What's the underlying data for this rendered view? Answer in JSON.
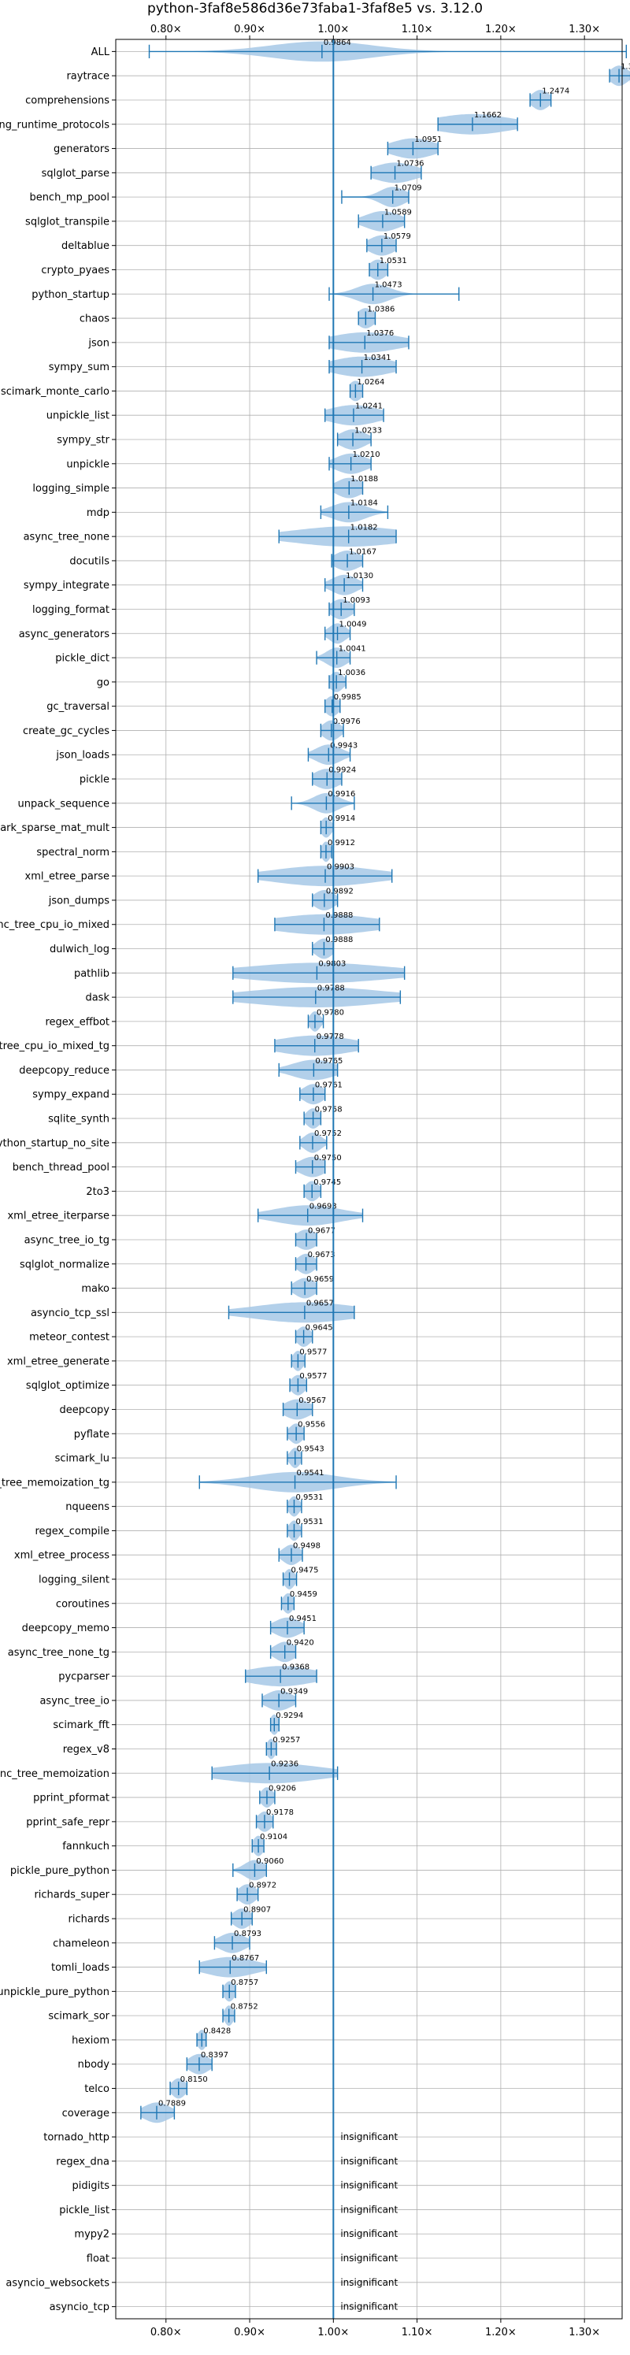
{
  "chart_data": {
    "type": "violin",
    "title": "python-3faf8e586d36e73faba1-3faf8e5 vs. 3.12.0",
    "x_ticks": [
      {
        "value": 0.8,
        "label": "0.80×"
      },
      {
        "value": 0.9,
        "label": "0.90×"
      },
      {
        "value": 1.0,
        "label": "1.00×"
      },
      {
        "value": 1.1,
        "label": "1.10×"
      },
      {
        "value": 1.2,
        "label": "1.20×"
      },
      {
        "value": 1.3,
        "label": "1.30×"
      }
    ],
    "xlim": [
      0.74,
      1.345
    ],
    "reference_line": 1.0,
    "grid": true,
    "colors": {
      "accent": "#1f77b4",
      "violin": "#a6c8e6",
      "grid": "#b0b0b0"
    },
    "insignificant_text": "insignificant",
    "benchmarks": [
      {
        "name": "ALL",
        "median": 0.9864,
        "min": 0.78,
        "max": 1.35,
        "spread": 0.06,
        "label": "0.9864"
      },
      {
        "name": "raytrace",
        "median": 1.3413,
        "min": 1.33,
        "max": 1.355,
        "spread": 0.01,
        "label": "1.3413"
      },
      {
        "name": "comprehensions",
        "median": 1.2474,
        "min": 1.235,
        "max": 1.26,
        "spread": 0.01,
        "label": "1.2474"
      },
      {
        "name": "typing_runtime_protocols",
        "median": 1.1662,
        "min": 1.125,
        "max": 1.22,
        "spread": 0.045,
        "label": "1.1662"
      },
      {
        "name": "generators",
        "median": 1.0951,
        "min": 1.065,
        "max": 1.125,
        "spread": 0.025,
        "label": "1.0951"
      },
      {
        "name": "sqlglot_parse",
        "median": 1.0736,
        "min": 1.045,
        "max": 1.105,
        "spread": 0.025,
        "label": "1.0736"
      },
      {
        "name": "bench_mp_pool",
        "median": 1.0709,
        "min": 1.01,
        "max": 1.09,
        "spread": 0.015,
        "label": "1.0709"
      },
      {
        "name": "sqlglot_transpile",
        "median": 1.0589,
        "min": 1.03,
        "max": 1.085,
        "spread": 0.02,
        "label": "1.0589"
      },
      {
        "name": "deltablue",
        "median": 1.0579,
        "min": 1.04,
        "max": 1.075,
        "spread": 0.015,
        "label": "1.0579"
      },
      {
        "name": "crypto_pyaes",
        "median": 1.0531,
        "min": 1.043,
        "max": 1.065,
        "spread": 0.01,
        "label": "1.0531"
      },
      {
        "name": "python_startup",
        "median": 1.0473,
        "min": 0.995,
        "max": 1.15,
        "spread": 0.02,
        "label": "1.0473"
      },
      {
        "name": "chaos",
        "median": 1.0386,
        "min": 1.03,
        "max": 1.05,
        "spread": 0.01,
        "label": "1.0386"
      },
      {
        "name": "json",
        "median": 1.0376,
        "min": 0.995,
        "max": 1.09,
        "spread": 0.04,
        "label": "1.0376"
      },
      {
        "name": "sympy_sum",
        "median": 1.0341,
        "min": 0.995,
        "max": 1.075,
        "spread": 0.035,
        "label": "1.0341"
      },
      {
        "name": "scimark_monte_carlo",
        "median": 1.0264,
        "min": 1.02,
        "max": 1.035,
        "spread": 0.008,
        "label": "1.0264"
      },
      {
        "name": "unpickle_list",
        "median": 1.0241,
        "min": 0.99,
        "max": 1.06,
        "spread": 0.03,
        "label": "1.0241"
      },
      {
        "name": "sympy_str",
        "median": 1.0233,
        "min": 1.005,
        "max": 1.045,
        "spread": 0.015,
        "label": "1.0233"
      },
      {
        "name": "unpickle",
        "median": 1.021,
        "min": 0.995,
        "max": 1.045,
        "spread": 0.018,
        "label": "1.0210"
      },
      {
        "name": "logging_simple",
        "median": 1.0188,
        "min": 1.0,
        "max": 1.035,
        "spread": 0.015,
        "label": "1.0188"
      },
      {
        "name": "mdp",
        "median": 1.0184,
        "min": 0.985,
        "max": 1.065,
        "spread": 0.02,
        "label": "1.0184"
      },
      {
        "name": "async_tree_none",
        "median": 1.0182,
        "min": 0.935,
        "max": 1.075,
        "spread": 0.065,
        "label": "1.0182"
      },
      {
        "name": "docutils",
        "median": 1.0167,
        "min": 0.998,
        "max": 1.035,
        "spread": 0.015,
        "label": "1.0167"
      },
      {
        "name": "sympy_integrate",
        "median": 1.013,
        "min": 0.99,
        "max": 1.035,
        "spread": 0.015,
        "label": "1.0130"
      },
      {
        "name": "logging_format",
        "median": 1.0093,
        "min": 0.995,
        "max": 1.025,
        "spread": 0.012,
        "label": "1.0093"
      },
      {
        "name": "async_generators",
        "median": 1.0049,
        "min": 0.99,
        "max": 1.02,
        "spread": 0.01,
        "label": "1.0049"
      },
      {
        "name": "pickle_dict",
        "median": 1.0041,
        "min": 0.98,
        "max": 1.02,
        "spread": 0.012,
        "label": "1.0041"
      },
      {
        "name": "go",
        "median": 1.0036,
        "min": 0.995,
        "max": 1.015,
        "spread": 0.008,
        "label": "1.0036"
      },
      {
        "name": "gc_traversal",
        "median": 0.9985,
        "min": 0.99,
        "max": 1.008,
        "spread": 0.008,
        "label": "0.9985"
      },
      {
        "name": "create_gc_cycles",
        "median": 0.9976,
        "min": 0.985,
        "max": 1.012,
        "spread": 0.01,
        "label": "0.9976"
      },
      {
        "name": "json_loads",
        "median": 0.9943,
        "min": 0.97,
        "max": 1.02,
        "spread": 0.015,
        "label": "0.9943"
      },
      {
        "name": "pickle",
        "median": 0.9924,
        "min": 0.975,
        "max": 1.01,
        "spread": 0.015,
        "label": "0.9924"
      },
      {
        "name": "unpack_sequence",
        "median": 0.9916,
        "min": 0.95,
        "max": 1.025,
        "spread": 0.015,
        "label": "0.9916"
      },
      {
        "name": "scimark_sparse_mat_mult",
        "median": 0.9914,
        "min": 0.985,
        "max": 1.0,
        "spread": 0.006,
        "label": "0.9914"
      },
      {
        "name": "spectral_norm",
        "median": 0.9912,
        "min": 0.985,
        "max": 0.998,
        "spread": 0.005,
        "label": "0.9912"
      },
      {
        "name": "xml_etree_parse",
        "median": 0.9903,
        "min": 0.91,
        "max": 1.07,
        "spread": 0.06,
        "label": "0.9903"
      },
      {
        "name": "json_dumps",
        "median": 0.9892,
        "min": 0.975,
        "max": 1.005,
        "spread": 0.012,
        "label": "0.9892"
      },
      {
        "name": "async_tree_cpu_io_mixed",
        "median": 0.9888,
        "min": 0.93,
        "max": 1.055,
        "spread": 0.06,
        "label": "0.9888"
      },
      {
        "name": "dulwich_log",
        "median": 0.9888,
        "min": 0.975,
        "max": 1.0,
        "spread": 0.01,
        "label": "0.9888"
      },
      {
        "name": "pathlib",
        "median": 0.9803,
        "min": 0.88,
        "max": 1.085,
        "spread": 0.085,
        "label": "0.9803"
      },
      {
        "name": "dask",
        "median": 0.9788,
        "min": 0.88,
        "max": 1.08,
        "spread": 0.08,
        "label": "0.9788"
      },
      {
        "name": "regex_effbot",
        "median": 0.978,
        "min": 0.97,
        "max": 0.988,
        "spread": 0.006,
        "label": "0.9780"
      },
      {
        "name": "async_tree_cpu_io_mixed_tg",
        "median": 0.9778,
        "min": 0.93,
        "max": 1.03,
        "spread": 0.045,
        "label": "0.9778"
      },
      {
        "name": "deepcopy_reduce",
        "median": 0.9765,
        "min": 0.935,
        "max": 1.005,
        "spread": 0.025,
        "label": "0.9765"
      },
      {
        "name": "sympy_expand",
        "median": 0.9761,
        "min": 0.96,
        "max": 0.99,
        "spread": 0.012,
        "label": "0.9761"
      },
      {
        "name": "sqlite_synth",
        "median": 0.9758,
        "min": 0.965,
        "max": 0.985,
        "spread": 0.008,
        "label": "0.9758"
      },
      {
        "name": "python_startup_no_site",
        "median": 0.9752,
        "min": 0.96,
        "max": 0.992,
        "spread": 0.01,
        "label": "0.9752"
      },
      {
        "name": "bench_thread_pool",
        "median": 0.975,
        "min": 0.955,
        "max": 0.99,
        "spread": 0.015,
        "label": "0.9750"
      },
      {
        "name": "2to3",
        "median": 0.9745,
        "min": 0.965,
        "max": 0.985,
        "spread": 0.008,
        "label": "0.9745"
      },
      {
        "name": "xml_etree_iterparse",
        "median": 0.9693,
        "min": 0.91,
        "max": 1.035,
        "spread": 0.04,
        "label": "0.9693"
      },
      {
        "name": "async_tree_io_tg",
        "median": 0.9677,
        "min": 0.955,
        "max": 0.98,
        "spread": 0.012,
        "label": "0.9677"
      },
      {
        "name": "sqlglot_normalize",
        "median": 0.9673,
        "min": 0.955,
        "max": 0.98,
        "spread": 0.01,
        "label": "0.9673"
      },
      {
        "name": "mako",
        "median": 0.9659,
        "min": 0.95,
        "max": 0.98,
        "spread": 0.012,
        "label": "0.9659"
      },
      {
        "name": "asyncio_tcp_ssl",
        "median": 0.9657,
        "min": 0.875,
        "max": 1.025,
        "spread": 0.06,
        "label": "0.9657"
      },
      {
        "name": "meteor_contest",
        "median": 0.9645,
        "min": 0.955,
        "max": 0.975,
        "spread": 0.008,
        "label": "0.9645"
      },
      {
        "name": "xml_etree_generate",
        "median": 0.9577,
        "min": 0.95,
        "max": 0.966,
        "spread": 0.006,
        "label": "0.9577"
      },
      {
        "name": "sqlglot_optimize",
        "median": 0.9577,
        "min": 0.948,
        "max": 0.968,
        "spread": 0.008,
        "label": "0.9577"
      },
      {
        "name": "deepcopy",
        "median": 0.9567,
        "min": 0.94,
        "max": 0.975,
        "spread": 0.015,
        "label": "0.9567"
      },
      {
        "name": "pyflate",
        "median": 0.9556,
        "min": 0.945,
        "max": 0.965,
        "spread": 0.008,
        "label": "0.9556"
      },
      {
        "name": "scimark_lu",
        "median": 0.9543,
        "min": 0.945,
        "max": 0.962,
        "spread": 0.006,
        "label": "0.9543"
      },
      {
        "name": "async_tree_memoization_tg",
        "median": 0.9541,
        "min": 0.84,
        "max": 1.075,
        "spread": 0.05,
        "label": "0.9541"
      },
      {
        "name": "nqueens",
        "median": 0.9531,
        "min": 0.945,
        "max": 0.962,
        "spread": 0.006,
        "label": "0.9531"
      },
      {
        "name": "regex_compile",
        "median": 0.9531,
        "min": 0.945,
        "max": 0.962,
        "spread": 0.006,
        "label": "0.9531"
      },
      {
        "name": "xml_etree_process",
        "median": 0.9498,
        "min": 0.935,
        "max": 0.963,
        "spread": 0.01,
        "label": "0.9498"
      },
      {
        "name": "logging_silent",
        "median": 0.9475,
        "min": 0.94,
        "max": 0.956,
        "spread": 0.006,
        "label": "0.9475"
      },
      {
        "name": "coroutines",
        "median": 0.9459,
        "min": 0.938,
        "max": 0.953,
        "spread": 0.006,
        "label": "0.9459"
      },
      {
        "name": "deepcopy_memo",
        "median": 0.9451,
        "min": 0.925,
        "max": 0.965,
        "spread": 0.015,
        "label": "0.9451"
      },
      {
        "name": "async_tree_none_tg",
        "median": 0.942,
        "min": 0.925,
        "max": 0.955,
        "spread": 0.012,
        "label": "0.9420"
      },
      {
        "name": "pycparser",
        "median": 0.9368,
        "min": 0.895,
        "max": 0.98,
        "spread": 0.04,
        "label": "0.9368"
      },
      {
        "name": "async_tree_io",
        "median": 0.9349,
        "min": 0.915,
        "max": 0.955,
        "spread": 0.015,
        "label": "0.9349"
      },
      {
        "name": "scimark_fft",
        "median": 0.9294,
        "min": 0.925,
        "max": 0.935,
        "spread": 0.005,
        "label": "0.9294"
      },
      {
        "name": "regex_v8",
        "median": 0.9257,
        "min": 0.92,
        "max": 0.932,
        "spread": 0.005,
        "label": "0.9257"
      },
      {
        "name": "async_tree_memoization",
        "median": 0.9236,
        "min": 0.855,
        "max": 1.005,
        "spread": 0.06,
        "label": "0.9236"
      },
      {
        "name": "pprint_pformat",
        "median": 0.9206,
        "min": 0.912,
        "max": 0.93,
        "spread": 0.007,
        "label": "0.9206"
      },
      {
        "name": "pprint_safe_repr",
        "median": 0.9178,
        "min": 0.908,
        "max": 0.928,
        "spread": 0.008,
        "label": "0.9178"
      },
      {
        "name": "fannkuch",
        "median": 0.9104,
        "min": 0.903,
        "max": 0.917,
        "spread": 0.006,
        "label": "0.9104"
      },
      {
        "name": "pickle_pure_python",
        "median": 0.906,
        "min": 0.88,
        "max": 0.92,
        "spread": 0.012,
        "label": "0.9060"
      },
      {
        "name": "richards_super",
        "median": 0.8972,
        "min": 0.885,
        "max": 0.91,
        "spread": 0.01,
        "label": "0.8972"
      },
      {
        "name": "richards",
        "median": 0.8907,
        "min": 0.878,
        "max": 0.903,
        "spread": 0.01,
        "label": "0.8907"
      },
      {
        "name": "chameleon",
        "median": 0.8793,
        "min": 0.858,
        "max": 0.9,
        "spread": 0.015,
        "label": "0.8793"
      },
      {
        "name": "tomli_loads",
        "median": 0.8767,
        "min": 0.84,
        "max": 0.92,
        "spread": 0.03,
        "label": "0.8767"
      },
      {
        "name": "unpickle_pure_python",
        "median": 0.8757,
        "min": 0.868,
        "max": 0.883,
        "spread": 0.006,
        "label": "0.8757"
      },
      {
        "name": "scimark_sor",
        "median": 0.8752,
        "min": 0.868,
        "max": 0.882,
        "spread": 0.005,
        "label": "0.8752"
      },
      {
        "name": "hexiom",
        "median": 0.8428,
        "min": 0.837,
        "max": 0.848,
        "spread": 0.005,
        "label": "0.8428"
      },
      {
        "name": "nbody",
        "median": 0.8397,
        "min": 0.825,
        "max": 0.855,
        "spread": 0.012,
        "label": "0.8397"
      },
      {
        "name": "telco",
        "median": 0.815,
        "min": 0.805,
        "max": 0.825,
        "spread": 0.008,
        "label": "0.8150"
      },
      {
        "name": "coverage",
        "median": 0.7889,
        "min": 0.77,
        "max": 0.81,
        "spread": 0.015,
        "label": "0.7889"
      },
      {
        "name": "tornado_http",
        "insignificant": true
      },
      {
        "name": "regex_dna",
        "insignificant": true
      },
      {
        "name": "pidigits",
        "insignificant": true
      },
      {
        "name": "pickle_list",
        "insignificant": true
      },
      {
        "name": "mypy2",
        "insignificant": true
      },
      {
        "name": "float",
        "insignificant": true
      },
      {
        "name": "asyncio_websockets",
        "insignificant": true
      },
      {
        "name": "asyncio_tcp",
        "insignificant": true
      }
    ]
  }
}
